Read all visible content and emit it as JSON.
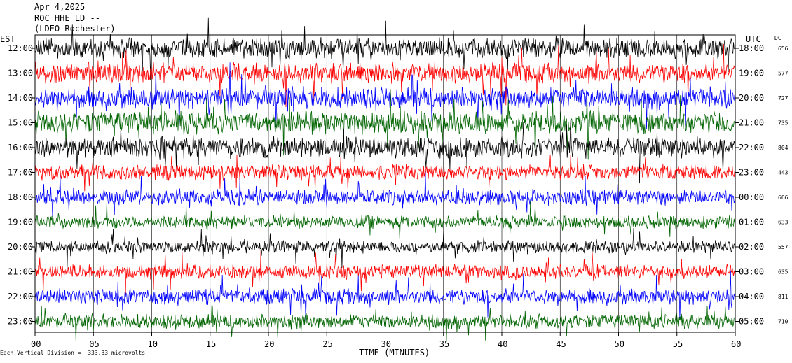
{
  "header": {
    "line1": "Apr 4,2025",
    "line2": "ROC HHE LD --",
    "line3": "(LDEO Rochester)"
  },
  "footer": {
    "note": "Each Vertical Division =  333.33 microvolts"
  },
  "chart_data": {
    "type": "line",
    "title": "",
    "xlabel": "TIME (MINUTES)",
    "xlim": [
      0,
      60
    ],
    "x_ticks": [
      "00",
      "05",
      "10",
      "15",
      "20",
      "25",
      "30",
      "35",
      "40",
      "45",
      "50",
      "55",
      "60"
    ],
    "left_axis_label": "EST",
    "right_axis_label": "UTC",
    "dc_label": "DC",
    "colors": [
      "#000000",
      "#ff0000",
      "#0000ff",
      "#006400"
    ],
    "rows": [
      {
        "est": "12:00",
        "utc": "18:00",
        "dc": "656",
        "amplitude": 14
      },
      {
        "est": "13:00",
        "utc": "19:00",
        "dc": "577",
        "amplitude": 14
      },
      {
        "est": "14:00",
        "utc": "20:00",
        "dc": "727",
        "amplitude": 15
      },
      {
        "est": "15:00",
        "utc": "21:00",
        "dc": "735",
        "amplitude": 16
      },
      {
        "est": "16:00",
        "utc": "22:00",
        "dc": "804",
        "amplitude": 15
      },
      {
        "est": "17:00",
        "utc": "23:00",
        "dc": "443",
        "amplitude": 11
      },
      {
        "est": "18:00",
        "utc": "00:00",
        "dc": "666",
        "amplitude": 11
      },
      {
        "est": "19:00",
        "utc": "01:00",
        "dc": "633",
        "amplitude": 9
      },
      {
        "est": "20:00",
        "utc": "02:00",
        "dc": "557",
        "amplitude": 9
      },
      {
        "est": "21:00",
        "utc": "03:00",
        "dc": "635",
        "amplitude": 10
      },
      {
        "est": "22:00",
        "utc": "04:00",
        "dc": "811",
        "amplitude": 11
      },
      {
        "est": "23:00",
        "utc": "05:00",
        "dc": "710",
        "amplitude": 10
      }
    ]
  }
}
